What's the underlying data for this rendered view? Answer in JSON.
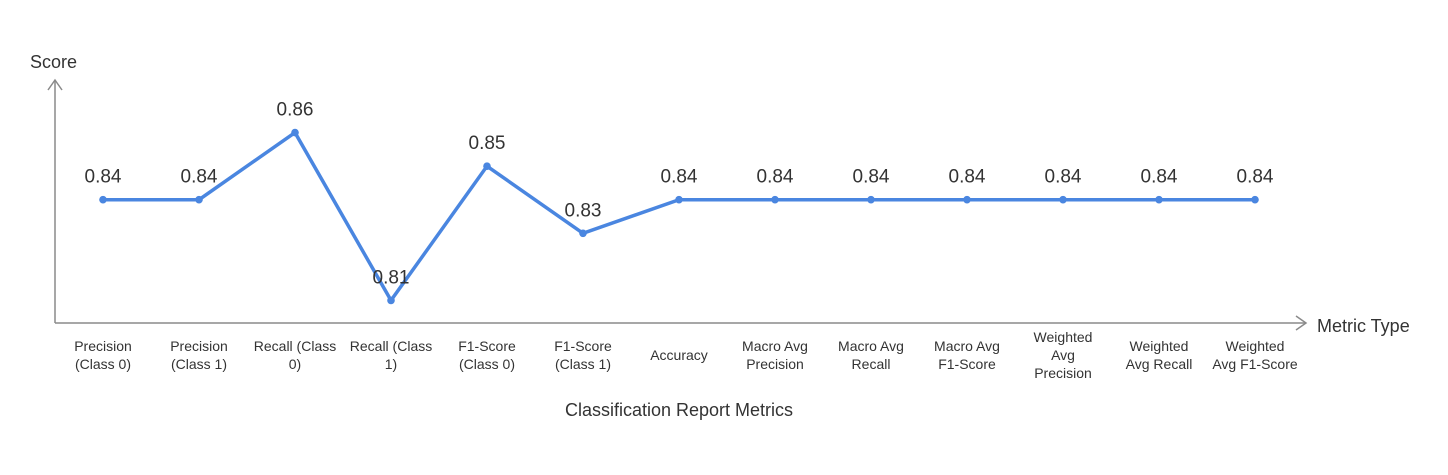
{
  "chart_data": {
    "type": "line",
    "title": "",
    "xlabel": "Classification Report Metrics",
    "ylabel": "Score",
    "xaxis_arrow_label": "Metric Type",
    "categories": [
      "Precision (Class 0)",
      "Precision (Class 1)",
      "Recall (Class 0)",
      "Recall (Class 1)",
      "F1-Score (Class 0)",
      "F1-Score (Class 1)",
      "Accuracy",
      "Macro Avg Precision",
      "Macro Avg Recall",
      "Macro Avg F1-Score",
      "Weighted Avg Precision",
      "Weighted Avg Recall",
      "Weighted Avg F1-Score"
    ],
    "category_label_lines": [
      [
        "Precision",
        "(Class 0)"
      ],
      [
        "Precision",
        "(Class 1)"
      ],
      [
        "Recall (Class",
        "0)"
      ],
      [
        "Recall (Class",
        "1)"
      ],
      [
        "F1-Score",
        "(Class 0)"
      ],
      [
        "F1-Score",
        "(Class 1)"
      ],
      [
        "Accuracy"
      ],
      [
        "Macro Avg",
        "Precision"
      ],
      [
        "Macro Avg",
        "Recall"
      ],
      [
        "Macro Avg",
        "F1-Score"
      ],
      [
        "Weighted",
        "Avg",
        "Precision"
      ],
      [
        "Weighted",
        "Avg Recall"
      ],
      [
        "Weighted",
        "Avg F1-Score"
      ]
    ],
    "values": [
      0.84,
      0.84,
      0.86,
      0.81,
      0.85,
      0.83,
      0.84,
      0.84,
      0.84,
      0.84,
      0.84,
      0.84,
      0.84
    ],
    "value_labels": [
      "0.84",
      "0.84",
      "0.86",
      "0.81",
      "0.85",
      "0.83",
      "0.84",
      "0.84",
      "0.84",
      "0.84",
      "0.84",
      "0.84",
      "0.84"
    ],
    "ylim": [
      0.8,
      0.87
    ],
    "grid": false,
    "legend": "none",
    "colors": {
      "series": "#4a86e0",
      "axis": "#8a8a8a",
      "text": "#333333"
    }
  }
}
